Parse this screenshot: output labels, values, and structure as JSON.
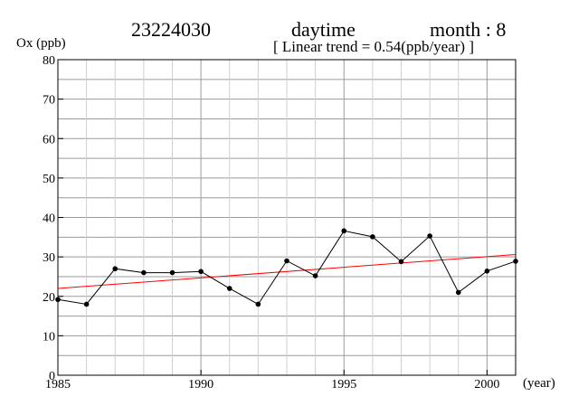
{
  "header": {
    "station": "23224030",
    "period": "daytime",
    "month": "month : 8",
    "trend": "[ Linear trend = 0.54(ppb/year) ]"
  },
  "chart_data": {
    "type": "line",
    "ylabel": "Ox (ppb)",
    "xlabel": "(year)",
    "xlim": [
      1985,
      2001
    ],
    "ylim": [
      0,
      80
    ],
    "x_ticks": [
      1985,
      1990,
      1995,
      2000
    ],
    "y_ticks": [
      0,
      10,
      20,
      30,
      40,
      50,
      60,
      70,
      80
    ],
    "grid": true,
    "series": [
      {
        "color": "#000000",
        "x": [
          1985,
          1986,
          1987,
          1988,
          1989,
          1990,
          1991,
          1992,
          1993,
          1994,
          1995,
          1996,
          1997,
          1998,
          1999,
          2000,
          2001
        ],
        "values": [
          19.2,
          18.0,
          27.0,
          26.0,
          26.0,
          26.3,
          22.0,
          18.0,
          29.0,
          25.2,
          36.6,
          35.1,
          28.8,
          35.3,
          21.0,
          26.4,
          28.9
        ]
      }
    ],
    "trend_line": {
      "color": "#ff0000",
      "x": [
        1985,
        2001
      ],
      "values": [
        22.0,
        30.6
      ]
    }
  }
}
